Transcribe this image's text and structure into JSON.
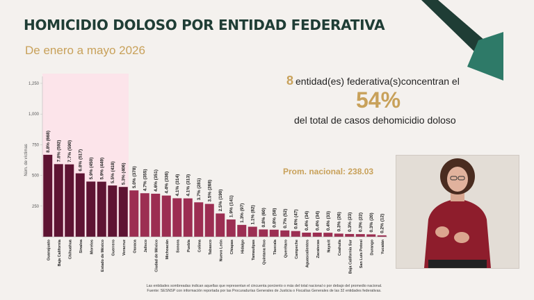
{
  "header": {
    "title": "HOMICIDIO DOLOSO POR ENTIDAD FEDERATIVA",
    "subtitle": "De enero a mayo 2026"
  },
  "summary": {
    "count": "8",
    "line1_text": "entidad(es) federativa(s)concentran el",
    "percent": "54%",
    "line3_text": "del total de casos dehomicidio doloso"
  },
  "average_label": "Prom. nacional: 238.03",
  "footnote": {
    "line1": "Las entidades sombreadas indican aquellas que representan el cincuenta porciento o más del total nacional o por debajo del promedio nacional.",
    "line2": "Fuente: SESNSP con información reportada por las Procuradurías Generales de Justicia o Fiscalías Generales de las 32 entidades federativas."
  },
  "colors": {
    "title": "#1f3d35",
    "accent_gold": "#c8a15a",
    "bar_top": "#5e1433",
    "bar_other": "#9c2e52",
    "highlight": "#fce4ea",
    "arrow_dark": "#1f3d35",
    "arrow_light": "#2e7a68"
  },
  "icons": {
    "trend": "trend-down-arrow-icon"
  },
  "chart_data": {
    "type": "bar",
    "ylabel": "Núm. de víctimas",
    "ylim": [
      0,
      1250
    ],
    "yticks": [
      250,
      500,
      750,
      1000,
      1250
    ],
    "ytick_labels": [
      "250",
      "500",
      "750",
      "1,000",
      "1,250"
    ],
    "highlighted_count": 8,
    "categories": [
      "Guanajuato",
      "Baja California",
      "Chihuahua",
      "Sinaloa",
      "Morelos",
      "Estado de México",
      "Guerrero",
      "Veracruz",
      "Oaxaca",
      "Jalisco",
      "Ciudad de México",
      "Michoacán",
      "Sonora",
      "Puebla",
      "Colima",
      "Tabasco",
      "Nuevo León",
      "Chiapas",
      "Hidalgo",
      "Tamaulipas",
      "Quintana Roo",
      "Tlaxcala",
      "Querétaro",
      "Campeche",
      "Aguascalientes",
      "Zacatecas",
      "Nayarit",
      "Coahuila",
      "Baja California Sur",
      "San Luis Potosí",
      "Durango",
      "Yucatán"
    ],
    "values": [
      668,
      592,
      590,
      517,
      450,
      449,
      418,
      406,
      378,
      355,
      351,
      336,
      314,
      313,
      281,
      268,
      190,
      141,
      97,
      82,
      60,
      58,
      52,
      47,
      34,
      34,
      33,
      26,
      23,
      22,
      20,
      12
    ],
    "labels": [
      "8.8% (668)",
      "7.8% (592)",
      "7.7% (590)",
      "6.8% (517)",
      "5.9% (450)",
      "5.9% (449)",
      "5.5% (418)",
      "5.3% (406)",
      "5.0% (378)",
      "4.7% (355)",
      "4.6% (351)",
      "4.4% (336)",
      "4.1% (314)",
      "4.1% (313)",
      "3.7% (281)",
      "3.5% (268)",
      "2.5% (190)",
      "1.9% (141)",
      "1.3% (97)",
      "1.1% (82)",
      "0.8% (60)",
      "0.8% (58)",
      "0.7% (52)",
      "0.6% (47)",
      "0.4% (34)",
      "0.4% (34)",
      "0.4% (33)",
      "0.3% (26)",
      "0.3% (23)",
      "0.3% (22)",
      "0.3% (20)",
      "0.2% (12)"
    ]
  }
}
